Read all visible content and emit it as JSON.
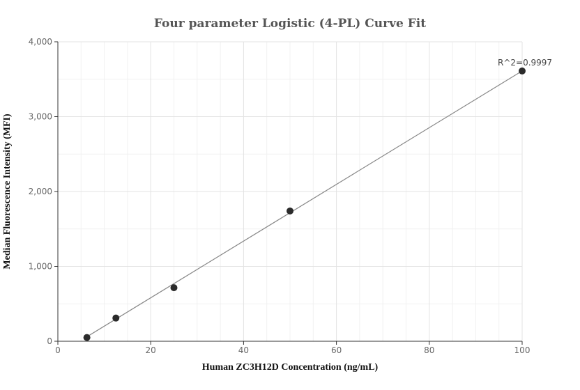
{
  "chart_data": {
    "type": "scatter",
    "title": "Four parameter Logistic (4-PL) Curve Fit",
    "xlabel": "Human ZC3H12D Concentration (ng/mL)",
    "ylabel": "Median Fluorescence Intensity (MFI)",
    "xlim": [
      0,
      100
    ],
    "ylim": [
      0,
      4000
    ],
    "x_ticks": [
      0,
      20,
      40,
      60,
      80,
      100
    ],
    "x_tick_labels": [
      "0",
      "20",
      "40",
      "60",
      "80",
      "100"
    ],
    "y_ticks": [
      0,
      1000,
      2000,
      3000,
      4000
    ],
    "y_tick_labels": [
      "0",
      "1,000",
      "2,000",
      "3,000",
      "4,000"
    ],
    "grid": true,
    "points": [
      {
        "x": 6.25,
        "y": 50
      },
      {
        "x": 12.5,
        "y": 310
      },
      {
        "x": 25,
        "y": 715
      },
      {
        "x": 50,
        "y": 1740
      },
      {
        "x": 100,
        "y": 3610
      }
    ],
    "fit_curve": {
      "x": [
        6.25,
        100
      ],
      "y": [
        60,
        3610
      ]
    },
    "annotations": [
      {
        "text": "R^2=0.9997",
        "x": 100,
        "y": 3610
      }
    ]
  }
}
